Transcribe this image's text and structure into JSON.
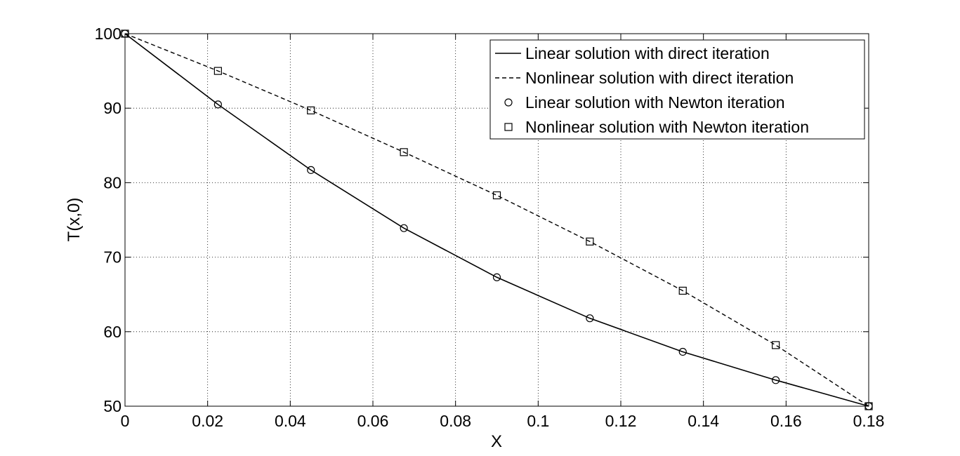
{
  "chart_data": {
    "type": "line",
    "title": "",
    "xlabel": "X",
    "ylabel": "T(x,0)",
    "xlim": [
      0,
      0.18
    ],
    "ylim": [
      50,
      100
    ],
    "xticks": [
      0,
      0.02,
      0.04,
      0.06,
      0.08,
      0.1,
      0.12,
      0.14,
      0.16,
      0.18
    ],
    "xtick_labels": [
      "0",
      "0.02",
      "0.04",
      "0.06",
      "0.08",
      "0.1",
      "0.12",
      "0.14",
      "0.16",
      "0.18"
    ],
    "yticks": [
      50,
      60,
      70,
      80,
      90,
      100
    ],
    "ytick_labels": [
      "50",
      "60",
      "70",
      "80",
      "90",
      "100"
    ],
    "grid": true,
    "legend_position": "top-right",
    "series": [
      {
        "name": "Linear solution with direct iteration",
        "style": "solid-line",
        "x": [
          0,
          0.0225,
          0.045,
          0.0675,
          0.09,
          0.1125,
          0.135,
          0.1575,
          0.18
        ],
        "y": [
          100,
          90.5,
          81.7,
          73.9,
          67.3,
          61.8,
          57.3,
          53.5,
          50
        ]
      },
      {
        "name": "Nonlinear solution with direct iteration",
        "style": "dashed-line",
        "x": [
          0,
          0.0225,
          0.045,
          0.0675,
          0.09,
          0.1125,
          0.135,
          0.1575,
          0.18
        ],
        "y": [
          100,
          95.0,
          89.7,
          84.1,
          78.3,
          72.1,
          65.5,
          58.2,
          50
        ]
      },
      {
        "name": "Linear solution with Newton iteration",
        "style": "circle-markers",
        "x": [
          0,
          0.0225,
          0.045,
          0.0675,
          0.09,
          0.1125,
          0.135,
          0.1575,
          0.18
        ],
        "y": [
          100,
          90.5,
          81.7,
          73.9,
          67.3,
          61.8,
          57.3,
          53.5,
          50
        ]
      },
      {
        "name": "Nonlinear solution with Newton iteration",
        "style": "square-markers",
        "x": [
          0,
          0.0225,
          0.045,
          0.0675,
          0.09,
          0.1125,
          0.135,
          0.1575,
          0.18
        ],
        "y": [
          100,
          95.0,
          89.7,
          84.1,
          78.3,
          72.1,
          65.5,
          58.2,
          50
        ]
      }
    ]
  }
}
